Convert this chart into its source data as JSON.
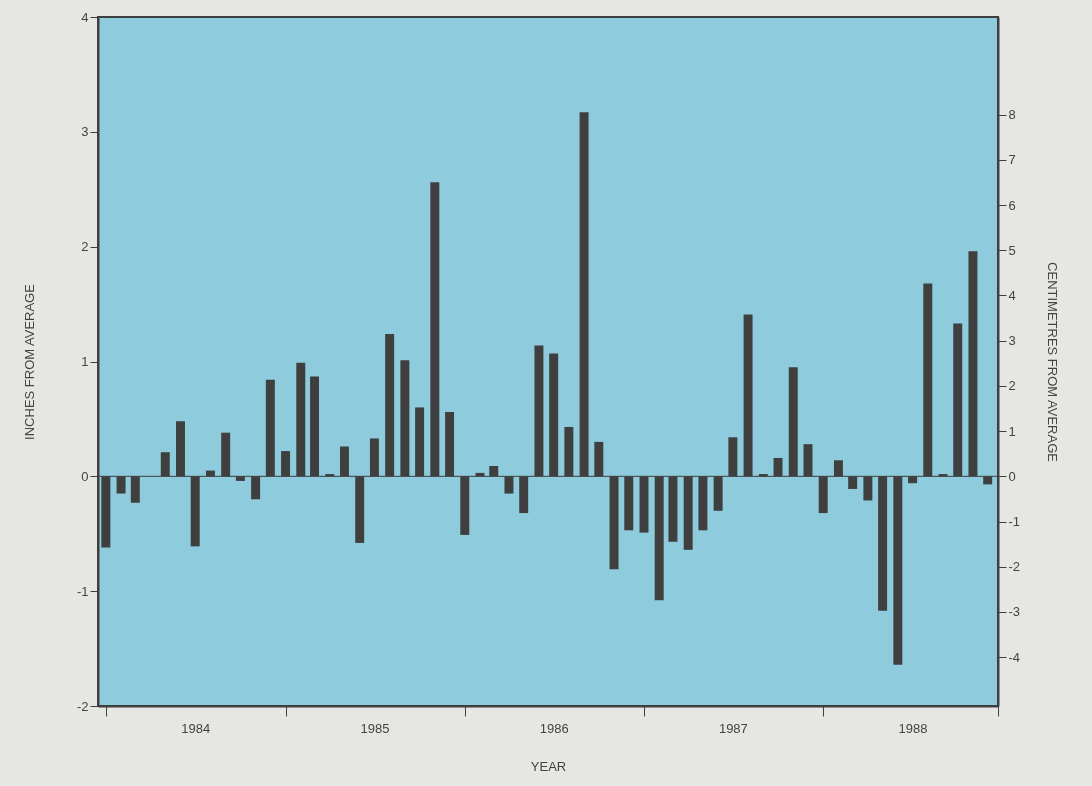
{
  "chart_data": {
    "type": "bar",
    "xlabel": "YEAR",
    "ylabel": "INCHES FROM AVERAGE",
    "y2label": "CENTIMETRES FROM AVERAGE",
    "x": [
      "1984-01",
      "1984-02",
      "1984-03",
      "1984-04",
      "1984-05",
      "1984-06",
      "1984-07",
      "1984-08",
      "1984-09",
      "1984-10",
      "1984-11",
      "1984-12",
      "1985-01",
      "1985-02",
      "1985-03",
      "1985-04",
      "1985-05",
      "1985-06",
      "1985-07",
      "1985-08",
      "1985-09",
      "1985-10",
      "1985-11",
      "1985-12",
      "1986-01",
      "1986-02",
      "1986-03",
      "1986-04",
      "1986-05",
      "1986-06",
      "1986-07",
      "1986-08",
      "1986-09",
      "1986-10",
      "1986-11",
      "1986-12",
      "1987-01",
      "1987-02",
      "1987-03",
      "1987-04",
      "1987-05",
      "1987-06",
      "1987-07",
      "1987-08",
      "1987-09",
      "1987-10",
      "1987-11",
      "1987-12",
      "1988-01",
      "1988-02",
      "1988-03",
      "1988-04",
      "1988-05",
      "1988-06",
      "1988-07",
      "1988-08",
      "1988-09",
      "1988-10",
      "1988-11",
      "1988-12"
    ],
    "series": [
      {
        "color": "#3f3f3f",
        "values": [
          -0.62,
          -0.15,
          -0.23,
          0,
          0.21,
          0.48,
          -0.61,
          0.05,
          0.38,
          -0.04,
          -0.2,
          0.84,
          0.22,
          0.99,
          0.87,
          0.02,
          0.26,
          -0.58,
          0.33,
          1.24,
          1.01,
          0.6,
          2.56,
          0.56,
          -0.51,
          0.03,
          0.09,
          -0.15,
          -0.32,
          1.14,
          1.07,
          0.43,
          3.17,
          0.3,
          -0.81,
          -0.47,
          -0.49,
          -1.08,
          -0.57,
          -0.64,
          -0.47,
          -0.3,
          0.34,
          1.41,
          0.02,
          0.16,
          0.95,
          0.28,
          -0.32,
          0.14,
          -0.11,
          -0.21,
          -1.17,
          -1.64,
          -0.06,
          1.68,
          0.02,
          1.33,
          1.96,
          -0.07
        ]
      }
    ],
    "xlim": [
      "1983-12-16",
      "1988-12-22"
    ],
    "xticks": [
      {
        "value": "1984-01",
        "label": null
      },
      {
        "value": "1984-07",
        "label": "1984"
      },
      {
        "value": "1985-01",
        "label": null
      },
      {
        "value": "1985-07",
        "label": "1985"
      },
      {
        "value": "1986-01",
        "label": null
      },
      {
        "value": "1986-07",
        "label": "1986"
      },
      {
        "value": "1987-01",
        "label": null
      },
      {
        "value": "1987-07",
        "label": "1987"
      },
      {
        "value": "1988-01",
        "label": null
      },
      {
        "value": "1988-07",
        "label": "1988"
      },
      {
        "value": "1988-12-22",
        "label": null
      }
    ],
    "ylim": [
      -2,
      4
    ],
    "yticks": [
      -2,
      -1,
      0,
      1,
      2,
      3,
      4
    ],
    "y2lim": [
      -5.08,
      10.16
    ],
    "y2ticks": [
      -4,
      -3,
      -2,
      -1,
      0,
      1,
      2,
      3,
      4,
      5,
      6,
      7,
      8
    ],
    "ref_lines": [
      {
        "axis": "y",
        "value": 0,
        "color": "#3f3f3f"
      }
    ],
    "grid": false
  }
}
